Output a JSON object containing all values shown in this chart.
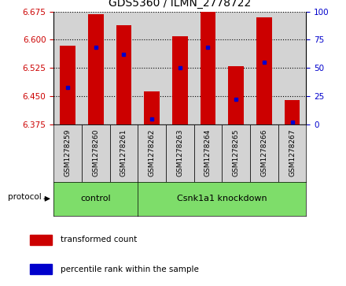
{
  "title": "GDS5360 / ILMN_2778722",
  "samples": [
    "GSM1278259",
    "GSM1278260",
    "GSM1278261",
    "GSM1278262",
    "GSM1278263",
    "GSM1278264",
    "GSM1278265",
    "GSM1278266",
    "GSM1278267"
  ],
  "transformed_count": [
    6.585,
    6.668,
    6.638,
    6.462,
    6.61,
    6.675,
    6.53,
    6.66,
    6.44
  ],
  "percentile_rank": [
    33,
    68,
    62,
    5,
    50,
    68,
    22,
    55,
    2
  ],
  "ylim_left": [
    6.375,
    6.675
  ],
  "ylim_right": [
    0,
    100
  ],
  "yticks_left": [
    6.375,
    6.45,
    6.525,
    6.6,
    6.675
  ],
  "yticks_right": [
    0,
    25,
    50,
    75,
    100
  ],
  "bar_color": "#cc0000",
  "dot_color": "#0000cc",
  "bg_color": "#ffffff",
  "control_label": "control",
  "knockdown_label": "Csnk1a1 knockdown",
  "protocol_label": "protocol",
  "legend_count_label": "transformed count",
  "legend_pct_label": "percentile rank within the sample",
  "group_color": "#7EDD6A",
  "sample_bg": "#d3d3d3",
  "left_color": "#cc0000",
  "right_color": "#0000cc",
  "n_control": 3,
  "n_total": 9
}
